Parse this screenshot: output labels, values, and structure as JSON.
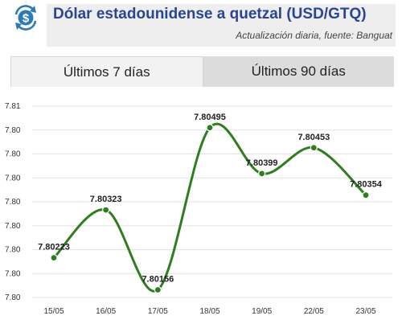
{
  "header": {
    "title": "Dólar estadounidense a quetzal (USD/GTQ)",
    "subtitle": "Actualización diaria, fuente: Banguat",
    "logo_icon": "dollar-exchange-icon",
    "logo_color": "#2e7ab8",
    "title_color": "#2a4592"
  },
  "tabs": [
    {
      "label": "Últimos 7 días",
      "active": true
    },
    {
      "label": "Últimos 90 días",
      "active": false
    }
  ],
  "chart_data": {
    "type": "line",
    "title": "",
    "xlabel": "",
    "ylabel": "",
    "categories": [
      "15/05",
      "16/05",
      "17/05",
      "18/05",
      "19/05",
      "22/05",
      "23/05"
    ],
    "values": [
      7.80223,
      7.80323,
      7.80156,
      7.80495,
      7.80399,
      7.80453,
      7.80354
    ],
    "data_labels": [
      "7.80223",
      "7.80323",
      "7.80156",
      "7.80495",
      "7.80399",
      "7.80453",
      "7.80354"
    ],
    "y_ticks": [
      7.8014,
      7.8019,
      7.8024,
      7.8029,
      7.8034,
      7.8039,
      7.8044,
      7.8049,
      7.8054
    ],
    "y_tick_labels": [
      "7.80",
      "7.80",
      "7.80",
      "7.80",
      "7.80",
      "7.80",
      "7.80",
      "7.80",
      "7.81"
    ],
    "ylim": [
      7.8014,
      7.8054
    ],
    "grid": true,
    "smooth": true,
    "line_color": "#2f7d1f",
    "point_color": "#2f7d1f",
    "grid_color": "#e3e3e3"
  }
}
